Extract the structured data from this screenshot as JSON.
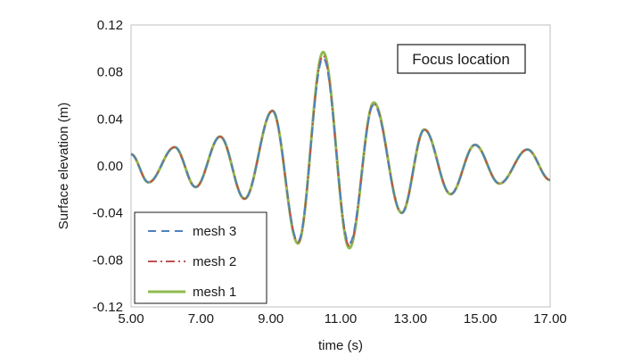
{
  "chart_data": {
    "type": "line",
    "title": "",
    "xlabel": "time (s)",
    "ylabel": "Surface elevation (m)",
    "xlim": [
      5.0,
      17.0
    ],
    "ylim": [
      -0.12,
      0.12
    ],
    "xticks": [
      5,
      7,
      9,
      11,
      13,
      15,
      17
    ],
    "xtick_labels": [
      "5.00",
      "7.00",
      "9.00",
      "11.00",
      "13.00",
      "15.00",
      "17.00"
    ],
    "yticks": [
      0.12,
      0.08,
      0.04,
      0.0,
      -0.04,
      -0.08,
      -0.12
    ],
    "ytick_labels": [
      "0.12",
      "0.08",
      "0.04",
      "0.00",
      "-0.04",
      "-0.08",
      "-0.12"
    ],
    "grid": false,
    "annotation": "Focus location",
    "legend": {
      "position": "bottom-left",
      "entries": [
        "mesh 3",
        "mesh 2",
        "mesh 1"
      ]
    },
    "series": [
      {
        "name": "mesh 1",
        "color": "#8fbc4f",
        "style": "solid",
        "x": [
          5.0,
          5.5,
          6.25,
          6.85,
          7.55,
          8.25,
          9.05,
          9.78,
          10.5,
          11.25,
          11.95,
          12.75,
          13.4,
          14.15,
          14.85,
          15.55,
          16.35,
          17.0
        ],
        "y": [
          0.01,
          -0.014,
          0.016,
          -0.018,
          0.025,
          -0.028,
          0.047,
          -0.066,
          0.097,
          -0.07,
          0.054,
          -0.04,
          0.031,
          -0.024,
          0.018,
          -0.015,
          0.014,
          -0.012
        ]
      },
      {
        "name": "mesh 2",
        "color": "#c0504d",
        "style": "dashdot",
        "x": [
          5.0,
          5.5,
          6.25,
          6.85,
          7.55,
          8.25,
          9.05,
          9.78,
          10.5,
          11.25,
          11.95,
          12.75,
          13.4,
          14.15,
          14.85,
          15.55,
          16.35,
          17.0
        ],
        "y": [
          0.01,
          -0.014,
          0.016,
          -0.018,
          0.025,
          -0.028,
          0.047,
          -0.065,
          0.094,
          -0.068,
          0.053,
          -0.04,
          0.031,
          -0.024,
          0.018,
          -0.015,
          0.014,
          -0.012
        ]
      },
      {
        "name": "mesh 3",
        "color": "#4f81bd",
        "style": "dashed",
        "x": [
          5.0,
          5.5,
          6.25,
          6.85,
          7.55,
          8.25,
          9.05,
          9.78,
          10.5,
          11.25,
          11.95,
          12.75,
          13.4,
          14.15,
          14.85,
          15.55,
          16.35,
          17.0
        ],
        "y": [
          0.01,
          -0.014,
          0.016,
          -0.018,
          0.025,
          -0.028,
          0.047,
          -0.064,
          0.092,
          -0.066,
          0.052,
          -0.04,
          0.031,
          -0.024,
          0.018,
          -0.015,
          0.014,
          -0.012
        ]
      }
    ]
  }
}
